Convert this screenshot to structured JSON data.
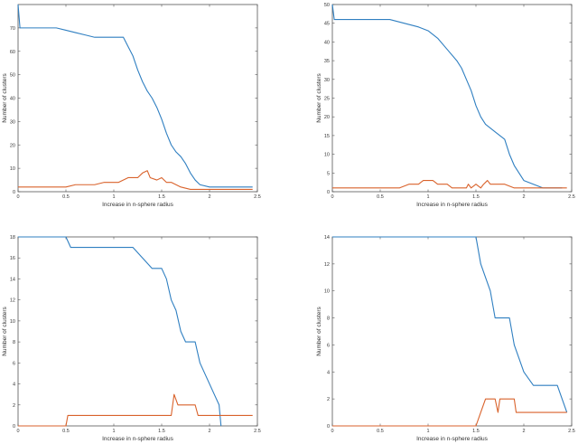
{
  "figure": {
    "description_label": "Four panels: number of clusters vs. increase in n-sphere radius"
  },
  "colors": {
    "series_blue": "#2f7fc1",
    "series_orange": "#d9622b",
    "axis": "#555555"
  },
  "chart_data": [
    {
      "type": "line",
      "title": "",
      "xlabel": "Increase in n-sphere radius",
      "ylabel": "Number of clusters",
      "xlim": [
        0,
        2.5
      ],
      "ylim": [
        0,
        80
      ],
      "xticks": [
        0,
        0.5,
        1,
        1.5,
        2,
        2.5
      ],
      "xtick_labels": [
        "0",
        "0.5",
        "1",
        "1.5",
        "2",
        "2.5"
      ],
      "yticks": [
        0,
        10,
        20,
        30,
        40,
        50,
        60,
        70
      ],
      "ytick_labels": [
        "0",
        "10",
        "20",
        "30",
        "40",
        "50",
        "60",
        "70"
      ],
      "series": [
        {
          "name": "blue",
          "color": "#2f7fc1",
          "points": [
            [
              0,
              80
            ],
            [
              0.02,
              70
            ],
            [
              0.3,
              70
            ],
            [
              0.4,
              70
            ],
            [
              0.5,
              69
            ],
            [
              0.6,
              68
            ],
            [
              0.7,
              67
            ],
            [
              0.8,
              66
            ],
            [
              0.9,
              66
            ],
            [
              1.0,
              66
            ],
            [
              1.1,
              66
            ],
            [
              1.15,
              62
            ],
            [
              1.2,
              58
            ],
            [
              1.25,
              52
            ],
            [
              1.3,
              47
            ],
            [
              1.35,
              43
            ],
            [
              1.4,
              40
            ],
            [
              1.45,
              36
            ],
            [
              1.5,
              31
            ],
            [
              1.55,
              25
            ],
            [
              1.6,
              20
            ],
            [
              1.65,
              17
            ],
            [
              1.7,
              15
            ],
            [
              1.75,
              12
            ],
            [
              1.8,
              8
            ],
            [
              1.85,
              5
            ],
            [
              1.9,
              3
            ],
            [
              2.0,
              2
            ],
            [
              2.2,
              2
            ],
            [
              2.45,
              2
            ]
          ]
        },
        {
          "name": "orange",
          "color": "#d9622b",
          "points": [
            [
              0,
              2
            ],
            [
              0.5,
              2
            ],
            [
              0.6,
              3
            ],
            [
              0.8,
              3
            ],
            [
              0.9,
              4
            ],
            [
              1.05,
              4
            ],
            [
              1.15,
              6
            ],
            [
              1.25,
              6
            ],
            [
              1.3,
              8
            ],
            [
              1.35,
              9
            ],
            [
              1.38,
              6
            ],
            [
              1.45,
              5
            ],
            [
              1.5,
              6
            ],
            [
              1.55,
              4
            ],
            [
              1.6,
              4
            ],
            [
              1.7,
              2
            ],
            [
              1.8,
              1
            ],
            [
              2.45,
              1
            ]
          ]
        }
      ]
    },
    {
      "type": "line",
      "title": "",
      "xlabel": "Increase in n-sphere radius",
      "ylabel": "Number of clusters",
      "xlim": [
        0,
        2.5
      ],
      "ylim": [
        0,
        50
      ],
      "xticks": [
        0,
        0.5,
        1,
        1.5,
        2,
        2.5
      ],
      "xtick_labels": [
        "0",
        "0.5",
        "1",
        "1.5",
        "2",
        "2.5"
      ],
      "yticks": [
        0,
        5,
        10,
        15,
        20,
        25,
        30,
        35,
        40,
        45,
        50
      ],
      "ytick_labels": [
        "0",
        "5",
        "10",
        "15",
        "20",
        "25",
        "30",
        "35",
        "40",
        "45",
        "50"
      ],
      "series": [
        {
          "name": "blue",
          "color": "#2f7fc1",
          "points": [
            [
              0,
              50
            ],
            [
              0.02,
              46
            ],
            [
              0.6,
              46
            ],
            [
              0.75,
              45
            ],
            [
              0.9,
              44
            ],
            [
              1.0,
              43
            ],
            [
              1.1,
              41
            ],
            [
              1.2,
              38
            ],
            [
              1.3,
              35
            ],
            [
              1.35,
              33
            ],
            [
              1.4,
              30
            ],
            [
              1.45,
              27
            ],
            [
              1.5,
              23
            ],
            [
              1.55,
              20
            ],
            [
              1.6,
              18
            ],
            [
              1.7,
              16
            ],
            [
              1.8,
              14
            ],
            [
              1.85,
              10
            ],
            [
              1.9,
              7
            ],
            [
              1.95,
              5
            ],
            [
              2.0,
              3
            ],
            [
              2.1,
              2
            ],
            [
              2.2,
              1
            ],
            [
              2.4,
              1
            ]
          ]
        },
        {
          "name": "orange",
          "color": "#d9622b",
          "points": [
            [
              0,
              1
            ],
            [
              0.7,
              1
            ],
            [
              0.8,
              2
            ],
            [
              0.9,
              2
            ],
            [
              0.95,
              3
            ],
            [
              1.05,
              3
            ],
            [
              1.1,
              2
            ],
            [
              1.2,
              2
            ],
            [
              1.25,
              1
            ],
            [
              1.4,
              1
            ],
            [
              1.42,
              2
            ],
            [
              1.45,
              1
            ],
            [
              1.5,
              2
            ],
            [
              1.55,
              1
            ],
            [
              1.58,
              2
            ],
            [
              1.62,
              3
            ],
            [
              1.65,
              2
            ],
            [
              1.7,
              2
            ],
            [
              1.8,
              2
            ],
            [
              1.9,
              1
            ],
            [
              2.45,
              1
            ]
          ]
        }
      ]
    },
    {
      "type": "line",
      "title": "",
      "xlabel": "Increase in n-sphere radius",
      "ylabel": "Number of clusters",
      "xlim": [
        0,
        2.5
      ],
      "ylim": [
        0,
        18
      ],
      "xticks": [
        0,
        0.5,
        1,
        1.5,
        2,
        2.5
      ],
      "xtick_labels": [
        "0",
        "0.5",
        "1",
        "1.5",
        "2",
        "2.5"
      ],
      "yticks": [
        0,
        2,
        4,
        6,
        8,
        10,
        12,
        14,
        16,
        18
      ],
      "ytick_labels": [
        "0",
        "2",
        "4",
        "6",
        "8",
        "10",
        "12",
        "14",
        "16",
        "18"
      ],
      "series": [
        {
          "name": "blue",
          "color": "#2f7fc1",
          "points": [
            [
              0,
              18
            ],
            [
              0.5,
              18
            ],
            [
              0.55,
              17
            ],
            [
              1.2,
              17
            ],
            [
              1.3,
              16
            ],
            [
              1.4,
              15
            ],
            [
              1.5,
              15
            ],
            [
              1.55,
              14
            ],
            [
              1.6,
              12
            ],
            [
              1.65,
              11
            ],
            [
              1.7,
              9
            ],
            [
              1.75,
              8
            ],
            [
              1.85,
              8
            ],
            [
              1.9,
              6
            ],
            [
              1.95,
              5
            ],
            [
              2.0,
              4
            ],
            [
              2.05,
              3
            ],
            [
              2.1,
              2
            ],
            [
              2.12,
              0
            ]
          ]
        },
        {
          "name": "orange",
          "color": "#d9622b",
          "points": [
            [
              0,
              0
            ],
            [
              0.5,
              0
            ],
            [
              0.52,
              1
            ],
            [
              1.6,
              1
            ],
            [
              1.63,
              3
            ],
            [
              1.67,
              2
            ],
            [
              1.85,
              2
            ],
            [
              1.88,
              1
            ],
            [
              2.45,
              1
            ]
          ]
        }
      ]
    },
    {
      "type": "line",
      "title": "",
      "xlabel": "Increase in n-sphere radius",
      "ylabel": "Number of clusters",
      "xlim": [
        0,
        2.5
      ],
      "ylim": [
        0,
        14
      ],
      "xticks": [
        0,
        0.5,
        1,
        1.5,
        2,
        2.5
      ],
      "xtick_labels": [
        "0",
        "0.5",
        "1",
        "1.5",
        "2",
        "2.5"
      ],
      "yticks": [
        0,
        2,
        4,
        6,
        8,
        10,
        12,
        14
      ],
      "ytick_labels": [
        "0",
        "2",
        "4",
        "6",
        "8",
        "10",
        "12",
        "14"
      ],
      "series": [
        {
          "name": "blue",
          "color": "#2f7fc1",
          "points": [
            [
              0,
              14
            ],
            [
              1.5,
              14
            ],
            [
              1.55,
              12
            ],
            [
              1.6,
              11
            ],
            [
              1.65,
              10
            ],
            [
              1.7,
              8
            ],
            [
              1.85,
              8
            ],
            [
              1.9,
              6
            ],
            [
              1.95,
              5
            ],
            [
              2.0,
              4
            ],
            [
              2.1,
              3
            ],
            [
              2.35,
              3
            ],
            [
              2.4,
              2
            ],
            [
              2.45,
              1
            ]
          ]
        },
        {
          "name": "orange",
          "color": "#d9622b",
          "points": [
            [
              0,
              0
            ],
            [
              1.5,
              0
            ],
            [
              1.55,
              1
            ],
            [
              1.6,
              2
            ],
            [
              1.7,
              2
            ],
            [
              1.73,
              1
            ],
            [
              1.75,
              2
            ],
            [
              1.9,
              2
            ],
            [
              1.92,
              1
            ],
            [
              2.45,
              1
            ]
          ]
        }
      ]
    }
  ]
}
